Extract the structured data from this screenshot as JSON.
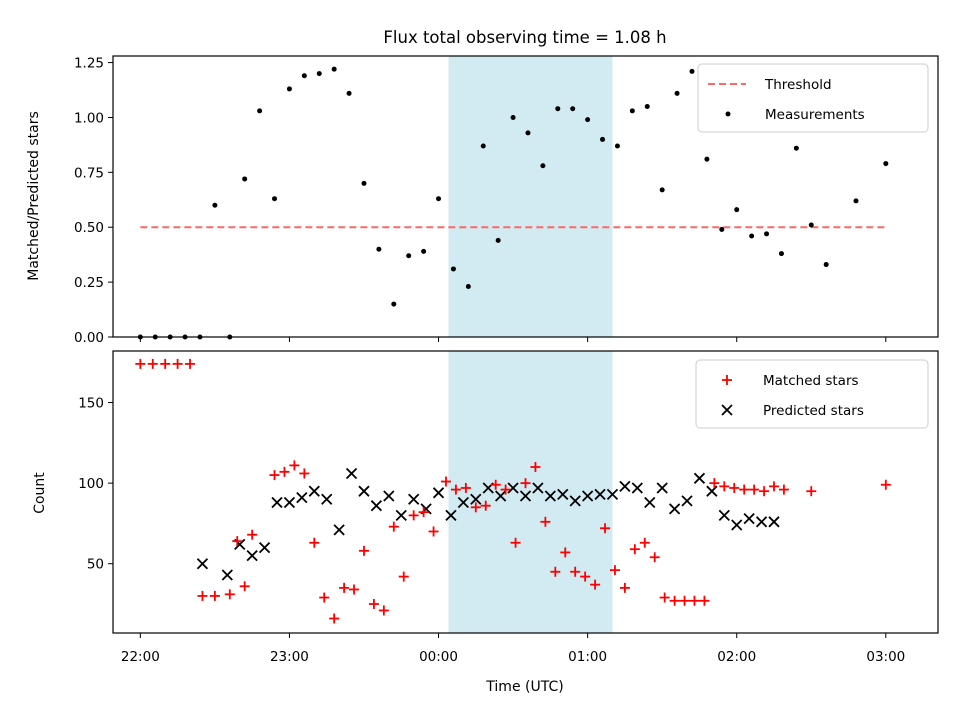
{
  "chart_data": [
    {
      "type": "scatter",
      "title": "Flux total observing time = 1.08 h",
      "xlabel": "",
      "ylabel": "Matched/Predicted stars",
      "ylim": [
        0,
        1.28
      ],
      "yticks": [
        "0.00",
        "0.25",
        "0.50",
        "0.75",
        "1.00",
        "1.25"
      ],
      "ytick_values": [
        0,
        0.25,
        0.5,
        0.75,
        1.0,
        1.25
      ],
      "shaded_interval": [
        "00:04",
        "01:10"
      ],
      "shade_color": "#add8e6",
      "threshold": {
        "name": "Threshold",
        "value": 0.5,
        "x_start": "22:00",
        "x_end": "03:00",
        "color": "#ff6666"
      },
      "series": [
        {
          "name": "Measurements",
          "color": "#000000",
          "x": [
            "22:00",
            "22:06",
            "22:12",
            "22:18",
            "22:24",
            "22:30",
            "22:36",
            "22:42",
            "22:48",
            "22:54",
            "23:00",
            "23:06",
            "23:12",
            "23:18",
            "23:24",
            "23:30",
            "23:36",
            "23:42",
            "23:48",
            "23:54",
            "00:00",
            "00:06",
            "00:12",
            "00:18",
            "00:24",
            "00:30",
            "00:36",
            "00:42",
            "00:48",
            "00:54",
            "01:00",
            "01:06",
            "01:12",
            "01:18",
            "01:24",
            "01:30",
            "01:36",
            "01:42",
            "01:48",
            "01:54",
            "02:00",
            "02:06",
            "02:12",
            "02:18",
            "02:24",
            "02:30",
            "02:36",
            "02:48",
            "03:00"
          ],
          "y": [
            0.0,
            0.0,
            0.0,
            0.0,
            0.0,
            0.6,
            0.0,
            0.72,
            1.03,
            0.63,
            1.13,
            1.19,
            1.2,
            1.22,
            1.11,
            0.7,
            0.4,
            0.15,
            0.37,
            0.39,
            0.63,
            0.31,
            0.23,
            0.87,
            0.44,
            1.0,
            0.93,
            0.78,
            1.04,
            1.04,
            0.99,
            0.9,
            0.87,
            1.03,
            1.05,
            0.67,
            1.11,
            1.21,
            0.81,
            0.49,
            0.58,
            0.46,
            0.47,
            0.38,
            0.86,
            0.51,
            0.33,
            0.62,
            0.79
          ]
        }
      ]
    },
    {
      "type": "scatter",
      "title": "",
      "xlabel": "Time (UTC)",
      "ylabel": "Count",
      "ylim": [
        7,
        182
      ],
      "yticks": [
        "50",
        "100",
        "150"
      ],
      "ytick_values": [
        50,
        100,
        150
      ],
      "xticks": [
        "22:00",
        "23:00",
        "00:00",
        "01:00",
        "02:00",
        "03:00"
      ],
      "shaded_interval": [
        "00:04",
        "01:10"
      ],
      "series": [
        {
          "name": "Matched stars",
          "marker": "+",
          "color": "#ff0000",
          "x": [
            "22:00",
            "22:05",
            "22:10",
            "22:15",
            "22:20",
            "22:25",
            "22:30",
            "22:36",
            "22:39",
            "22:42",
            "22:45",
            "22:54",
            "22:58",
            "23:02",
            "23:06",
            "23:10",
            "23:14",
            "23:18",
            "23:22",
            "23:26",
            "23:30",
            "23:34",
            "23:38",
            "23:42",
            "23:46",
            "23:50",
            "23:54",
            "23:58",
            "00:03",
            "00:07",
            "00:11",
            "00:15",
            "00:19",
            "00:23",
            "00:27",
            "00:31",
            "00:35",
            "00:39",
            "00:43",
            "00:47",
            "00:51",
            "00:55",
            "00:59",
            "01:03",
            "01:07",
            "01:11",
            "01:15",
            "01:19",
            "01:23",
            "01:27",
            "01:31",
            "01:35",
            "01:39",
            "01:43",
            "01:47",
            "01:51",
            "01:55",
            "01:59",
            "02:03",
            "02:07",
            "02:11",
            "02:15",
            "02:19",
            "02:30",
            "03:00"
          ],
          "y": [
            174,
            174,
            174,
            174,
            174,
            30,
            30,
            31,
            64,
            36,
            68,
            105,
            107,
            111,
            106,
            63,
            29,
            16,
            35,
            34,
            58,
            25,
            21,
            73,
            42,
            80,
            82,
            70,
            101,
            96,
            97,
            85,
            86,
            99,
            96,
            63,
            100,
            110,
            76,
            45,
            57,
            45,
            42,
            37,
            72,
            46,
            35,
            59,
            63,
            54,
            29,
            27,
            27,
            27,
            27,
            100,
            98,
            97,
            96,
            96,
            95,
            98,
            96,
            95,
            99
          ]
        },
        {
          "name": "Predicted stars",
          "marker": "x",
          "color": "#000000",
          "x": [
            "22:25",
            "22:35",
            "22:40",
            "22:45",
            "22:50",
            "22:55",
            "23:00",
            "23:05",
            "23:10",
            "23:15",
            "23:20",
            "23:25",
            "23:30",
            "23:35",
            "23:40",
            "23:45",
            "23:50",
            "23:55",
            "00:00",
            "00:05",
            "00:10",
            "00:15",
            "00:20",
            "00:25",
            "00:30",
            "00:35",
            "00:40",
            "00:45",
            "00:50",
            "00:55",
            "01:00",
            "01:05",
            "01:10",
            "01:15",
            "01:20",
            "01:25",
            "01:30",
            "01:35",
            "01:40",
            "01:45",
            "01:50",
            "01:55",
            "02:00",
            "02:05",
            "02:10",
            "02:15"
          ],
          "y": [
            50,
            43,
            62,
            55,
            60,
            88,
            88,
            91,
            95,
            90,
            71,
            106,
            95,
            86,
            92,
            80,
            90,
            84,
            94,
            80,
            88,
            90,
            97,
            92,
            97,
            92,
            97,
            92,
            93,
            89,
            92,
            93,
            93,
            98,
            97,
            88,
            97,
            84,
            89,
            103,
            95,
            80,
            74,
            78,
            76,
            76
          ]
        }
      ]
    }
  ]
}
